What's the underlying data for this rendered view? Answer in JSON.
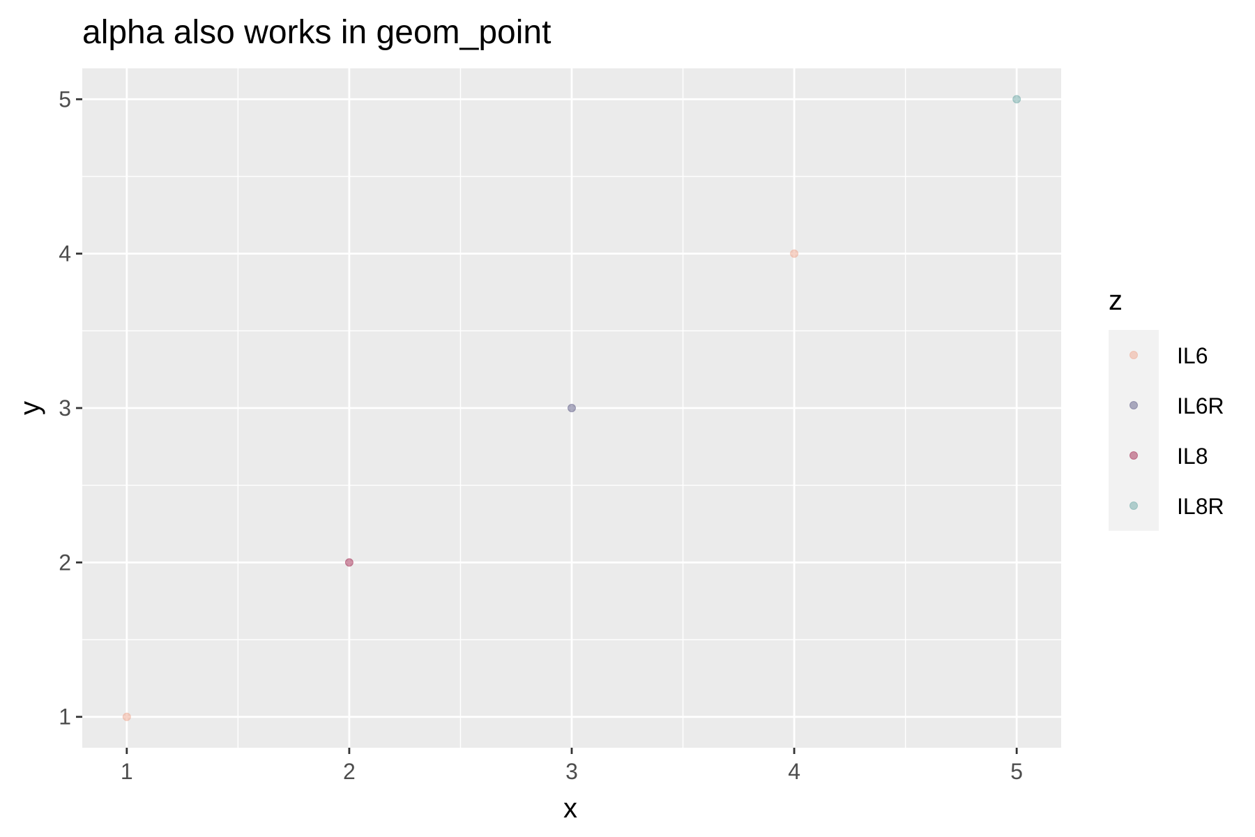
{
  "chart_data": {
    "type": "scatter",
    "title": "alpha also works in geom_point",
    "xlabel": "x",
    "ylabel": "y",
    "xlim": [
      0.8,
      5.2
    ],
    "ylim": [
      0.8,
      5.2
    ],
    "x_ticks": [
      1,
      2,
      3,
      4,
      5
    ],
    "y_ticks": [
      1,
      2,
      3,
      4,
      5
    ],
    "grid": true,
    "legend": {
      "title": "z",
      "placement": "right",
      "entries": [
        "IL6",
        "IL6R",
        "IL8",
        "IL8R"
      ]
    },
    "colors": {
      "IL6": "#F0A890",
      "IL6R": "#5E5B86",
      "IL8": "#A2284F",
      "IL8R": "#6BA8A6"
    },
    "alpha": 0.5,
    "points": [
      {
        "x": 1,
        "y": 1,
        "z": "IL6"
      },
      {
        "x": 2,
        "y": 2,
        "z": "IL8"
      },
      {
        "x": 3,
        "y": 3,
        "z": "IL6R"
      },
      {
        "x": 4,
        "y": 4,
        "z": "IL6"
      },
      {
        "x": 5,
        "y": 5,
        "z": "IL8R"
      }
    ],
    "panel_background": "#EBEBEB",
    "gridline_color": "#FFFFFF",
    "legend_key_background": "#F2F2F2"
  }
}
